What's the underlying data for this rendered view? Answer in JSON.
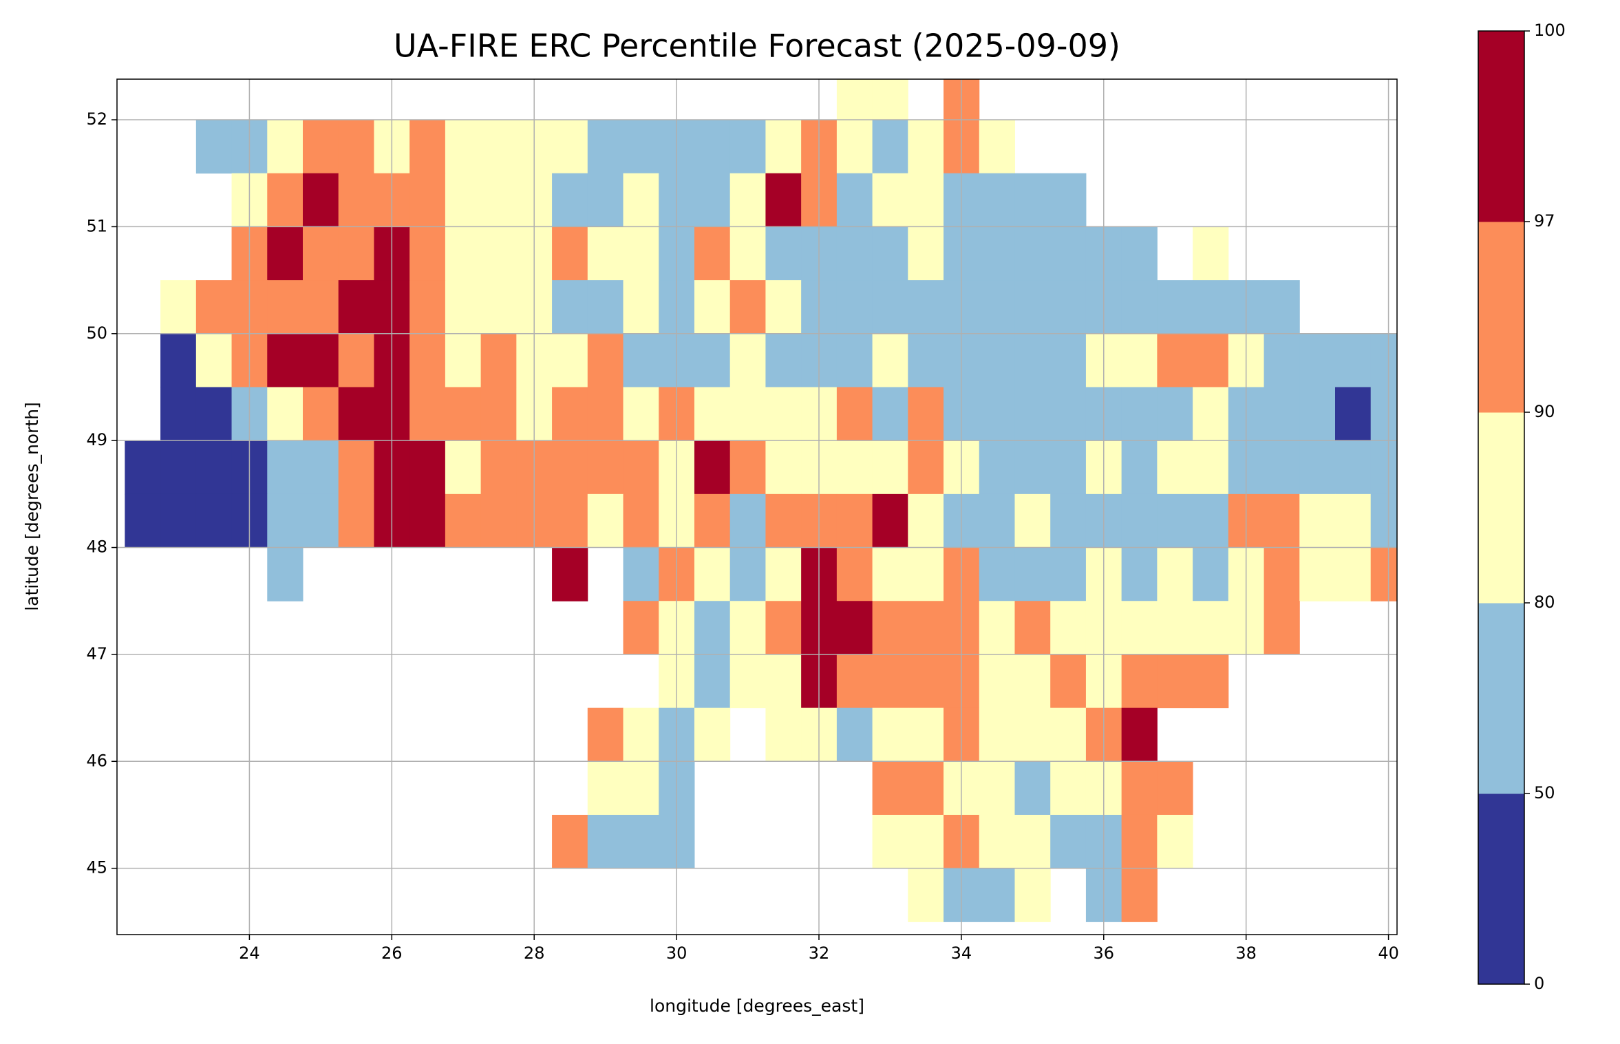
{
  "chart_data": {
    "type": "heatmap",
    "title": "UA-FIRE ERC Percentile Forecast (2025-09-09)",
    "xlabel": "longitude [degrees_east]",
    "ylabel": "latitude [degrees_north]",
    "xlim": [
      22.14,
      40.12
    ],
    "ylim": [
      44.38,
      52.38
    ],
    "xticks": [
      24,
      26,
      28,
      30,
      32,
      34,
      36,
      38,
      40
    ],
    "yticks": [
      45,
      46,
      47,
      48,
      49,
      50,
      51,
      52
    ],
    "grid": true,
    "x": [
      22.5,
      23,
      23.5,
      24,
      24.5,
      25,
      25.5,
      26,
      26.5,
      27,
      27.5,
      28,
      28.5,
      29,
      29.5,
      30,
      30.5,
      31,
      31.5,
      32,
      32.5,
      33,
      33.5,
      34,
      34.5,
      35,
      35.5,
      36,
      36.5,
      37,
      37.5,
      38,
      38.5,
      39,
      39.5,
      40
    ],
    "y": [
      52.25,
      51.75,
      51.25,
      50.75,
      50.25,
      49.75,
      49.25,
      48.75,
      48.25,
      47.75,
      47.25,
      46.75,
      46.25,
      45.75,
      45.25,
      44.75
    ],
    "values": [
      [
        null,
        null,
        null,
        null,
        null,
        null,
        null,
        null,
        null,
        null,
        null,
        null,
        null,
        null,
        null,
        null,
        null,
        null,
        null,
        null,
        85,
        85,
        null,
        93,
        null,
        null,
        null,
        null,
        null,
        null,
        null,
        null,
        null,
        null,
        null,
        null
      ],
      [
        null,
        null,
        65,
        65,
        85,
        93,
        93,
        85,
        93,
        85,
        85,
        85,
        85,
        65,
        65,
        65,
        65,
        65,
        85,
        93,
        85,
        65,
        85,
        93,
        85,
        null,
        null,
        null,
        null,
        null,
        null,
        null,
        null,
        null,
        null,
        null
      ],
      [
        null,
        null,
        null,
        85,
        93,
        98,
        93,
        93,
        93,
        85,
        85,
        85,
        65,
        65,
        85,
        65,
        65,
        85,
        98,
        93,
        65,
        85,
        85,
        65,
        65,
        65,
        65,
        null,
        null,
        null,
        null,
        null,
        null,
        null,
        null,
        null
      ],
      [
        null,
        null,
        null,
        93,
        98,
        93,
        93,
        98,
        93,
        85,
        85,
        85,
        93,
        85,
        85,
        65,
        93,
        85,
        65,
        65,
        65,
        65,
        85,
        65,
        65,
        65,
        65,
        65,
        65,
        null,
        85,
        null,
        null,
        null,
        null,
        null
      ],
      [
        null,
        85,
        93,
        93,
        93,
        93,
        98,
        98,
        93,
        85,
        85,
        85,
        65,
        65,
        85,
        65,
        85,
        93,
        85,
        65,
        65,
        65,
        65,
        65,
        65,
        65,
        65,
        65,
        65,
        65,
        65,
        65,
        65,
        null,
        null,
        null
      ],
      [
        null,
        25,
        85,
        93,
        98,
        98,
        93,
        98,
        93,
        85,
        93,
        85,
        85,
        93,
        65,
        65,
        65,
        85,
        65,
        65,
        65,
        85,
        65,
        65,
        65,
        65,
        65,
        85,
        85,
        93,
        93,
        85,
        65,
        65,
        65,
        65
      ],
      [
        null,
        25,
        25,
        65,
        85,
        93,
        98,
        98,
        93,
        93,
        93,
        85,
        93,
        93,
        85,
        93,
        85,
        85,
        85,
        85,
        93,
        65,
        93,
        65,
        65,
        65,
        65,
        65,
        65,
        65,
        85,
        65,
        65,
        65,
        25,
        65
      ],
      [
        25,
        25,
        25,
        25,
        65,
        65,
        93,
        98,
        98,
        85,
        93,
        93,
        93,
        93,
        93,
        85,
        98,
        93,
        85,
        85,
        85,
        85,
        93,
        85,
        65,
        65,
        65,
        85,
        65,
        85,
        85,
        65,
        65,
        65,
        65,
        65
      ],
      [
        25,
        25,
        25,
        25,
        65,
        65,
        93,
        98,
        98,
        93,
        93,
        93,
        93,
        85,
        93,
        85,
        93,
        65,
        93,
        93,
        93,
        98,
        85,
        65,
        65,
        85,
        65,
        65,
        65,
        65,
        65,
        93,
        93,
        85,
        85,
        65
      ],
      [
        null,
        null,
        null,
        null,
        65,
        null,
        null,
        null,
        null,
        null,
        null,
        null,
        98,
        null,
        65,
        93,
        85,
        65,
        85,
        98,
        93,
        85,
        85,
        93,
        65,
        65,
        65,
        85,
        65,
        85,
        65,
        85,
        93,
        85,
        85,
        93
      ],
      [
        null,
        null,
        null,
        null,
        null,
        null,
        null,
        null,
        null,
        null,
        null,
        null,
        null,
        null,
        93,
        85,
        65,
        85,
        93,
        98,
        98,
        93,
        93,
        93,
        85,
        93,
        85,
        85,
        85,
        85,
        85,
        85,
        93,
        null,
        null,
        null
      ],
      [
        null,
        null,
        null,
        null,
        null,
        null,
        null,
        null,
        null,
        null,
        null,
        null,
        null,
        null,
        null,
        85,
        65,
        85,
        85,
        98,
        93,
        93,
        93,
        93,
        85,
        85,
        93,
        85,
        93,
        93,
        93,
        null,
        null,
        null,
        null,
        null
      ],
      [
        null,
        null,
        null,
        null,
        null,
        null,
        null,
        null,
        null,
        null,
        null,
        null,
        null,
        93,
        85,
        65,
        85,
        null,
        85,
        85,
        65,
        85,
        85,
        93,
        85,
        85,
        85,
        93,
        98,
        null,
        null,
        null,
        null,
        null,
        null,
        null
      ],
      [
        null,
        null,
        null,
        null,
        null,
        null,
        null,
        null,
        null,
        null,
        null,
        null,
        null,
        85,
        85,
        65,
        null,
        null,
        null,
        null,
        null,
        93,
        93,
        85,
        85,
        65,
        85,
        85,
        93,
        93,
        null,
        null,
        null,
        null,
        null,
        null
      ],
      [
        null,
        null,
        null,
        null,
        null,
        null,
        null,
        null,
        null,
        null,
        null,
        null,
        93,
        65,
        65,
        65,
        null,
        null,
        null,
        null,
        null,
        85,
        85,
        93,
        85,
        85,
        65,
        65,
        93,
        85,
        null,
        null,
        null,
        null,
        null,
        null
      ],
      [
        null,
        null,
        null,
        null,
        null,
        null,
        null,
        null,
        null,
        null,
        null,
        null,
        null,
        null,
        null,
        null,
        null,
        null,
        null,
        null,
        null,
        null,
        85,
        65,
        65,
        85,
        null,
        65,
        93,
        null,
        null,
        null,
        null,
        null,
        null,
        null
      ]
    ],
    "colorbar": {
      "boundaries": [
        0,
        50,
        80,
        90,
        97,
        100
      ],
      "colors": [
        "#313695",
        "#91bfdb",
        "#ffffbf",
        "#fc8d59",
        "#a50026"
      ]
    }
  }
}
